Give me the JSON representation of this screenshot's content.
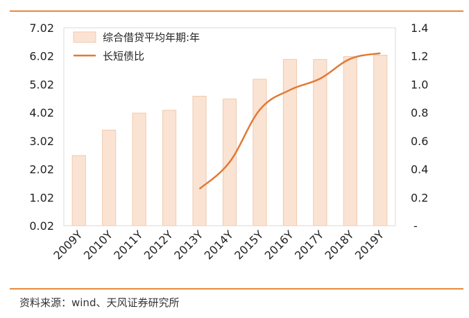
{
  "header_partial": "",
  "source": "资料来源：wind、天风证券研究所",
  "chart_data": {
    "type": "bar+line",
    "categories": [
      "2009Y",
      "2010Y",
      "2011Y",
      "2012Y",
      "2013Y",
      "2014Y",
      "2015Y",
      "2016Y",
      "2017Y",
      "2018Y",
      "2019Y"
    ],
    "series": [
      {
        "name": "综合借贷平均年期:年",
        "type": "bar",
        "axis": "left",
        "values": [
          2.5,
          3.4,
          4.0,
          4.1,
          4.6,
          4.5,
          5.2,
          5.9,
          5.9,
          6.0,
          6.05
        ],
        "color": "#fbe3d3",
        "border": "#f0c9ae"
      },
      {
        "name": "长短债比",
        "type": "line",
        "axis": "right",
        "values": [
          null,
          null,
          null,
          null,
          0.26,
          0.45,
          0.82,
          0.96,
          1.04,
          1.18,
          1.22
        ],
        "color": "#e07a36"
      }
    ],
    "left_axis": {
      "ticks": [
        "0.02",
        "1.02",
        "2.02",
        "3.02",
        "4.02",
        "5.02",
        "6.02",
        "7.02"
      ],
      "min": 0.02,
      "max": 7.02
    },
    "right_axis": {
      "ticks": [
        "-",
        "0.2",
        "0.4",
        "0.6",
        "0.8",
        "1.0",
        "1.2",
        "1.4"
      ],
      "min": 0,
      "max": 1.4
    },
    "legend_position": "top-left",
    "grid": false
  }
}
